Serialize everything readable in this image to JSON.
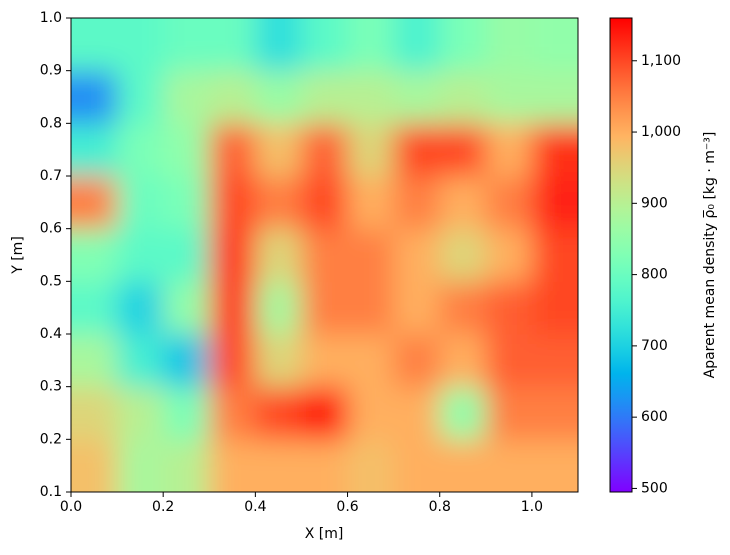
{
  "chart_data": {
    "type": "heatmap",
    "x_label": "X [m]",
    "y_label": "Y [m]",
    "colorbar_label": "Aparent mean density ρ̅₀ [kg · m⁻³]",
    "colormap": "rainbow",
    "x": [
      0.05,
      0.15,
      0.25,
      0.35,
      0.45,
      0.55,
      0.65,
      0.75,
      0.85,
      0.95,
      1.05
    ],
    "y": [
      0.15,
      0.25,
      0.35,
      0.45,
      0.55,
      0.65,
      0.75,
      0.85,
      0.95
    ],
    "values": [
      [
        980,
        880,
        900,
        1000,
        1000,
        1000,
        980,
        1000,
        1000,
        1000,
        1000
      ],
      [
        950,
        900,
        820,
        1050,
        1100,
        1150,
        1000,
        1000,
        850,
        1050,
        1050
      ],
      [
        880,
        750,
        680,
        1100,
        950,
        1000,
        1000,
        1050,
        1000,
        1080,
        1080
      ],
      [
        780,
        700,
        850,
        1120,
        880,
        1050,
        1050,
        1000,
        1050,
        1080,
        1100
      ],
      [
        830,
        780,
        780,
        1120,
        950,
        1050,
        1050,
        1000,
        950,
        1000,
        1100
      ],
      [
        1050,
        800,
        820,
        1100,
        1050,
        1100,
        1000,
        1050,
        1000,
        1050,
        1130
      ],
      [
        750,
        820,
        850,
        1080,
        980,
        1080,
        950,
        1100,
        1100,
        1000,
        1120
      ],
      [
        620,
        780,
        880,
        900,
        860,
        900,
        900,
        880,
        900,
        880,
        880
      ],
      [
        780,
        780,
        800,
        800,
        720,
        780,
        820,
        760,
        820,
        860,
        850
      ]
    ],
    "xlim": [
      0,
      1.1
    ],
    "ylim": [
      0.1,
      1.0
    ],
    "zlim": [
      495,
      1160
    ],
    "xticks": [
      {
        "value": 0,
        "label": "0.0"
      },
      0.2,
      0.4,
      0.6,
      0.8,
      {
        "value": 1,
        "label": "1.0"
      }
    ],
    "yticks": [
      0.1,
      0.2,
      0.3,
      0.4,
      0.5,
      0.6,
      0.7,
      0.8,
      0.9,
      {
        "value": 1,
        "label": "1.0"
      }
    ],
    "zticks": [
      500,
      600,
      700,
      800,
      900,
      {
        "value": 1000,
        "label": "1,000"
      },
      {
        "value": 1100,
        "label": "1,100"
      }
    ]
  }
}
